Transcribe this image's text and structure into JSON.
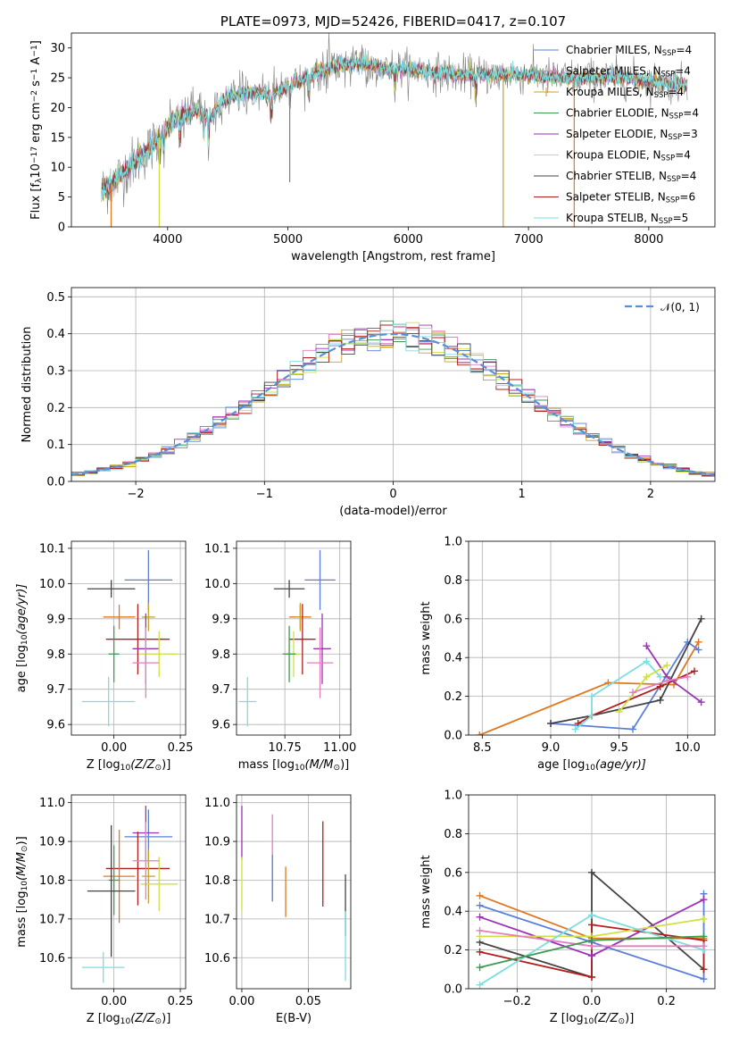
{
  "figure_title": "PLATE=0973, MJD=52426, FIBERID=0417, z=0.107",
  "colors": {
    "Chabrier MILES": "#5b7fd8",
    "Salpeter MILES": "#e47ebf",
    "Kroupa MILES": "#c9a227",
    "Chabrier ELODIE": "#3f9a52",
    "Salpeter ELODIE": "#9b32b5",
    "Kroupa ELODIE": "#cfe040",
    "Chabrier STELIB": "#444444",
    "Salpeter STELIB": "#b21e1e",
    "Kroupa STELIB": "#7ddde0",
    "orange": "#e07820",
    "spectrum_gray": "#7f7f7f",
    "gaussian": "#5b8ed8"
  },
  "chart_data": [
    {
      "id": "spectrum",
      "type": "line",
      "title": "PLATE=0973, MJD=52426, FIBERID=0417, z=0.107",
      "xlabel": "wavelength [Angstrom, rest frame]",
      "ylabel_parts": {
        "a": "Flux [f",
        "b": "λ",
        "c": "10",
        "d": "−17",
        "e": " erg cm",
        "f": "−2",
        "g": " s",
        "h": "−1",
        "i": " A",
        "j": "−1",
        "k": "]"
      },
      "xlim": [
        3200,
        8550
      ],
      "ylim": [
        0,
        32.5
      ],
      "xticks": [
        4000,
        5000,
        6000,
        7000,
        8000
      ],
      "yticks": [
        0,
        5,
        10,
        15,
        20,
        25,
        30
      ],
      "grid": false,
      "legend_position": "top-right",
      "legend": [
        {
          "pre": "Chabrier MILES, N",
          "sub": "SSP",
          "post": "=4",
          "color": "#5b7fd8",
          "marker": ""
        },
        {
          "pre": "Salpeter MILES, N",
          "sub": "SSP",
          "post": "=4",
          "color": "#e47ebf",
          "marker": ""
        },
        {
          "pre": "Kroupa MILES, N",
          "sub": "SSP",
          "post": "=4",
          "color": "#c9a227",
          "marker": "+"
        },
        {
          "pre": "Chabrier ELODIE, N",
          "sub": "SSP",
          "post": "=4",
          "color": "#3f9a52",
          "marker": ""
        },
        {
          "pre": "Salpeter ELODIE, N",
          "sub": "SSP",
          "post": "=3",
          "color": "#9b32b5",
          "marker": ""
        },
        {
          "pre": "Kroupa ELODIE, N",
          "sub": "SSP",
          "post": "=4",
          "color": "#cfe040",
          "marker": ""
        },
        {
          "pre": "Chabrier STELIB, N",
          "sub": "SSP",
          "post": "=4",
          "color": "#444444",
          "marker": ""
        },
        {
          "pre": "Salpeter STELIB, N",
          "sub": "SSP",
          "post": "=6",
          "color": "#b21e1e",
          "marker": ""
        },
        {
          "pre": "Kroupa STELIB, N",
          "sub": "SSP",
          "post": "=5",
          "color": "#7ddde0",
          "marker": ""
        }
      ],
      "continuum": {
        "x": [
          3450,
          3550,
          3650,
          3750,
          3850,
          3950,
          4050,
          4150,
          4250,
          4350,
          4450,
          4550,
          4650,
          4750,
          4850,
          4950,
          5050,
          5150,
          5250,
          5400,
          5600,
          5800,
          6000,
          6200,
          6400,
          6600,
          6800,
          7000,
          7200,
          7400,
          7600,
          7800,
          8000,
          8200,
          8320
        ],
        "y": [
          6,
          7.5,
          9.5,
          11.5,
          13,
          15.5,
          18,
          19,
          19.5,
          18,
          21,
          22,
          22.5,
          22.5,
          22,
          23,
          24,
          25,
          26,
          27,
          27.5,
          26.5,
          26.5,
          26,
          25.5,
          25.5,
          25.5,
          25.5,
          25,
          25,
          25,
          25,
          24.5,
          24,
          24
        ]
      },
      "dips": [
        {
          "x": 3530,
          "y": 0,
          "color": "#e07820"
        },
        {
          "x": 3930,
          "y": 0,
          "color": "#cfe040"
        },
        {
          "x": 6790,
          "y": 0,
          "color": "#c9a227"
        },
        {
          "x": 7380,
          "y": 0,
          "color": "#e07820"
        },
        {
          "x": 5015,
          "y": 7.5,
          "color": "#7f7f7f"
        }
      ]
    },
    {
      "id": "residuals",
      "type": "histogram",
      "xlabel": "(data-model)/error",
      "ylabel": "Normed distribution",
      "xlim": [
        -2.5,
        2.5
      ],
      "ylim": [
        0,
        0.525
      ],
      "xticks": [
        -2,
        -1,
        0,
        1,
        2
      ],
      "yticks": [
        0,
        0.1,
        0.2,
        0.3,
        0.4,
        0.5
      ],
      "ytick_labels": [
        "0.0",
        "0.1",
        "0.2",
        "0.3",
        "0.4",
        "0.5"
      ],
      "xtick_labels": [
        "−2",
        "−1",
        "0",
        "1",
        "2"
      ],
      "grid": true,
      "legend_position": "top-right",
      "legend_label": "𝒩(0, 1)",
      "bin_width": 0.1,
      "series_colors": [
        "#5b7fd8",
        "#e47ebf",
        "#c9a227",
        "#3f9a52",
        "#9b32b5",
        "#cfe040",
        "#444444",
        "#b21e1e",
        "#7ddde0"
      ]
    },
    {
      "id": "age_vs_Z",
      "type": "errorbar",
      "xlabel_pre": "Z [log",
      "xlabel_sub": "10",
      "xlabel_post": "(Z/Z",
      "xlabel_end": "⊙",
      "xlabel_close": ")]",
      "ylabel_pre": "age  [log",
      "ylabel_sub": "10",
      "ylabel_post": "(age/yr)]",
      "xlim": [
        -0.16,
        0.27
      ],
      "ylim": [
        9.57,
        10.12
      ],
      "xticks": [
        0.0,
        0.25
      ],
      "xtick_labels": [
        "0.00",
        "0.25"
      ],
      "yticks": [
        9.6,
        9.7,
        9.8,
        9.9,
        10.0,
        10.1
      ],
      "ytick_labels": [
        "9.6",
        "9.7",
        "9.8",
        "9.9",
        "10.0",
        "10.1"
      ],
      "points": [
        {
          "x": 0.13,
          "y": 10.01,
          "xerr": 0.09,
          "yerr": 0.085,
          "color": "#5b7fd8"
        },
        {
          "x": -0.01,
          "y": 9.985,
          "xerr": 0.09,
          "yerr": 0.025,
          "color": "#444444"
        },
        {
          "x": 0.02,
          "y": 9.905,
          "xerr": 0.06,
          "yerr": 0.035,
          "color": "#e07820"
        },
        {
          "x": 0.13,
          "y": 9.905,
          "xerr": 0.025,
          "yerr": 0.04,
          "color": "#c9a227"
        },
        {
          "x": 0.09,
          "y": 9.842,
          "xerr": 0.12,
          "yerr": 0.1,
          "color": "#b21e1e"
        },
        {
          "x": 0.12,
          "y": 9.815,
          "xerr": 0.05,
          "yerr": 0.1,
          "color": "#9b32b5"
        },
        {
          "x": 0.17,
          "y": 9.8,
          "xerr": 0.07,
          "yerr": 0.065,
          "color": "#cfe040"
        },
        {
          "x": 0.12,
          "y": 9.775,
          "xerr": 0.05,
          "yerr": 0.1,
          "color": "#e47ebf"
        },
        {
          "x": 0.0,
          "y": 9.8,
          "xerr": 0.02,
          "yerr": 0.08,
          "color": "#3f9a52"
        },
        {
          "x": -0.02,
          "y": 9.665,
          "xerr": 0.1,
          "yerr": 0.07,
          "color": "#7ddde0"
        }
      ]
    },
    {
      "id": "age_vs_mass",
      "type": "errorbar",
      "xlabel_pre": "mass [log",
      "xlabel_sub": "10",
      "xlabel_post": "(M/M",
      "xlabel_end": "⊙",
      "xlabel_close": ")]",
      "xlim": [
        10.53,
        11.05
      ],
      "ylim": [
        9.57,
        10.12
      ],
      "xticks": [
        10.75,
        11.0
      ],
      "xtick_labels": [
        "10.75",
        "11.00"
      ],
      "yticks": [
        9.6,
        9.7,
        9.8,
        9.9,
        10.0,
        10.1
      ],
      "ytick_labels": [
        "9.6",
        "9.7",
        "9.8",
        "9.9",
        "10.0",
        "10.1"
      ],
      "points": [
        {
          "x": 10.91,
          "y": 10.01,
          "xerr": 0.07,
          "yerr": 0.085,
          "color": "#5b7fd8"
        },
        {
          "x": 10.77,
          "y": 9.985,
          "xerr": 0.07,
          "yerr": 0.025,
          "color": "#444444"
        },
        {
          "x": 10.82,
          "y": 9.905,
          "xerr": 0.05,
          "yerr": 0.035,
          "color": "#e07820"
        },
        {
          "x": 10.82,
          "y": 9.905,
          "xerr": 0.02,
          "yerr": 0.04,
          "color": "#c9a227"
        },
        {
          "x": 10.83,
          "y": 9.842,
          "xerr": 0.06,
          "yerr": 0.1,
          "color": "#b21e1e"
        },
        {
          "x": 10.92,
          "y": 9.815,
          "xerr": 0.04,
          "yerr": 0.1,
          "color": "#9b32b5"
        },
        {
          "x": 10.79,
          "y": 9.8,
          "xerr": 0.03,
          "yerr": 0.065,
          "color": "#cfe040"
        },
        {
          "x": 10.91,
          "y": 9.775,
          "xerr": 0.06,
          "yerr": 0.1,
          "color": "#e47ebf"
        },
        {
          "x": 10.77,
          "y": 9.8,
          "xerr": 0.03,
          "yerr": 0.08,
          "color": "#3f9a52"
        },
        {
          "x": 10.58,
          "y": 9.665,
          "xerr": 0.04,
          "yerr": 0.07,
          "color": "#7ddde0"
        }
      ]
    },
    {
      "id": "weight_vs_age",
      "type": "line",
      "xlabel_pre": "age  [log",
      "xlabel_sub": "10",
      "xlabel_post": "(age/yr)]",
      "ylabel": "mass weight",
      "xlim": [
        8.4,
        10.2
      ],
      "ylim": [
        0,
        1.0
      ],
      "xticks": [
        8.5,
        9.0,
        9.5,
        10.0
      ],
      "xtick_labels": [
        "8.5",
        "9.0",
        "9.5",
        "10.0"
      ],
      "yticks": [
        0,
        0.2,
        0.4,
        0.6,
        0.8,
        1.0
      ],
      "ytick_labels": [
        "0.0",
        "0.2",
        "0.4",
        "0.6",
        "0.8",
        "1.0"
      ],
      "grid": true,
      "series": [
        {
          "color": "#e07820",
          "x": [
            8.48,
            9.42,
            9.9,
            10.08
          ],
          "y": [
            0.0,
            0.27,
            0.26,
            0.48
          ]
        },
        {
          "color": "#5b7fd8",
          "x": [
            9.0,
            9.6,
            10.0,
            10.08
          ],
          "y": [
            0.06,
            0.03,
            0.48,
            0.44
          ]
        },
        {
          "color": "#444444",
          "x": [
            9.0,
            9.3,
            9.8,
            10.1
          ],
          "y": [
            0.06,
            0.1,
            0.18,
            0.6
          ]
        },
        {
          "color": "#b21e1e",
          "x": [
            9.2,
            9.3,
            9.8,
            10.05
          ],
          "y": [
            0.06,
            0.1,
            0.25,
            0.33
          ]
        },
        {
          "color": "#7ddde0",
          "x": [
            9.18,
            9.3,
            9.3,
            9.7,
            9.8
          ],
          "y": [
            0.03,
            0.1,
            0.2,
            0.38,
            0.3
          ]
        },
        {
          "color": "#9b32b5",
          "x": [
            9.7,
            9.85,
            10.1
          ],
          "y": [
            0.46,
            0.3,
            0.17
          ]
        },
        {
          "color": "#cfe040",
          "x": [
            9.5,
            9.7,
            9.85
          ],
          "y": [
            0.12,
            0.3,
            0.36
          ]
        },
        {
          "color": "#e47ebf",
          "x": [
            9.6,
            9.85,
            10.0
          ],
          "y": [
            0.22,
            0.28,
            0.3
          ]
        }
      ]
    },
    {
      "id": "mass_vs_Z",
      "type": "errorbar",
      "xlabel_pre": "Z [log",
      "xlabel_sub": "10",
      "xlabel_post": "(Z/Z",
      "xlabel_end": "⊙",
      "xlabel_close": ")]",
      "ylabel_pre": "mass [log",
      "ylabel_sub": "10",
      "ylabel_post": "(M/M",
      "ylabel_end": "⊙",
      "ylabel_close": ")]",
      "xlim": [
        -0.16,
        0.27
      ],
      "ylim": [
        10.52,
        11.02
      ],
      "xticks": [
        0.0,
        0.25
      ],
      "xtick_labels": [
        "0.00",
        "0.25"
      ],
      "yticks": [
        10.6,
        10.7,
        10.8,
        10.9,
        11.0
      ],
      "ytick_labels": [
        "10.6",
        "10.7",
        "10.8",
        "10.9",
        "11.0"
      ],
      "points": [
        {
          "x": 0.13,
          "y": 10.912,
          "xerr": 0.09,
          "yerr": 0.07,
          "color": "#5b7fd8"
        },
        {
          "x": 0.12,
          "y": 10.922,
          "xerr": 0.05,
          "yerr": 0.07,
          "color": "#9b32b5"
        },
        {
          "x": 0.09,
          "y": 10.83,
          "xerr": 0.12,
          "yerr": 0.095,
          "color": "#b21e1e"
        },
        {
          "x": 0.02,
          "y": 10.81,
          "xerr": 0.06,
          "yerr": 0.12,
          "color": "#e07820"
        },
        {
          "x": 0.13,
          "y": 10.81,
          "xerr": 0.025,
          "yerr": 0.07,
          "color": "#c9a227"
        },
        {
          "x": 0.17,
          "y": 10.79,
          "xerr": 0.07,
          "yerr": 0.07,
          "color": "#cfe040"
        },
        {
          "x": 0.12,
          "y": 10.85,
          "xerr": 0.05,
          "yerr": 0.1,
          "color": "#e47ebf"
        },
        {
          "x": 0.0,
          "y": 10.8,
          "xerr": 0.02,
          "yerr": 0.09,
          "color": "#3f9a52"
        },
        {
          "x": -0.01,
          "y": 10.772,
          "xerr": 0.09,
          "yerr": 0.17,
          "color": "#444444"
        },
        {
          "x": -0.04,
          "y": 10.575,
          "xerr": 0.08,
          "yerr": 0.04,
          "color": "#7ddde0"
        }
      ]
    },
    {
      "id": "mass_vs_EBV",
      "type": "errorbar",
      "xlabel": "E(B-V)",
      "xlim": [
        -0.004,
        0.082
      ],
      "ylim": [
        10.52,
        11.02
      ],
      "xticks": [
        0.0,
        0.05
      ],
      "xtick_labels": [
        "0.00",
        "0.05"
      ],
      "yticks": [
        10.6,
        10.7,
        10.8,
        10.9,
        11.0
      ],
      "ytick_labels": [
        "10.6",
        "10.7",
        "10.8",
        "10.9",
        "11.0"
      ],
      "points": [
        {
          "x": 0.0,
          "y": 10.922,
          "xerr": 0,
          "yerr": 0.07,
          "color": "#9b32b5"
        },
        {
          "x": 0.0,
          "y": 10.79,
          "xerr": 0,
          "yerr": 0.07,
          "color": "#cfe040"
        },
        {
          "x": 0.023,
          "y": 10.86,
          "xerr": 0,
          "yerr": 0.11,
          "color": "#e47ebf"
        },
        {
          "x": 0.023,
          "y": 10.805,
          "xerr": 0,
          "yerr": 0.06,
          "color": "#5b7fd8"
        },
        {
          "x": 0.033,
          "y": 10.77,
          "xerr": 0,
          "yerr": 0.065,
          "color": "#e07820"
        },
        {
          "x": 0.061,
          "y": 10.842,
          "xerr": 0,
          "yerr": 0.11,
          "color": "#b21e1e"
        },
        {
          "x": 0.078,
          "y": 10.735,
          "xerr": 0,
          "yerr": 0.08,
          "color": "#444444"
        },
        {
          "x": 0.078,
          "y": 10.63,
          "xerr": 0,
          "yerr": 0.09,
          "color": "#7ddde0"
        }
      ]
    },
    {
      "id": "weight_vs_Z",
      "type": "line",
      "xlabel_pre": "Z [log",
      "xlabel_sub": "10",
      "xlabel_post": "(Z/Z",
      "xlabel_end": "⊙",
      "xlabel_close": ")]",
      "ylabel": "mass weight",
      "xlim": [
        -0.33,
        0.33
      ],
      "ylim": [
        0,
        1.0
      ],
      "xticks": [
        -0.2,
        0.0,
        0.2
      ],
      "xtick_labels": [
        "−0.2",
        "0.0",
        "0.2"
      ],
      "yticks": [
        0,
        0.2,
        0.4,
        0.6,
        0.8,
        1.0
      ],
      "ytick_labels": [
        "0.0",
        "0.2",
        "0.4",
        "0.6",
        "0.8",
        "1.0"
      ],
      "grid": true,
      "series": [
        {
          "color": "#e07820",
          "x": [
            -0.3,
            0.0,
            0.3
          ],
          "y": [
            0.48,
            0.26,
            0.26
          ]
        },
        {
          "color": "#5b7fd8",
          "x": [
            -0.3,
            0.0,
            0.3,
            0.3
          ],
          "y": [
            0.43,
            0.24,
            0.05,
            0.49
          ]
        },
        {
          "color": "#444444",
          "x": [
            -0.3,
            0.0,
            0.0,
            0.3
          ],
          "y": [
            0.24,
            0.06,
            0.6,
            0.1
          ]
        },
        {
          "color": "#b21e1e",
          "x": [
            -0.3,
            0.0,
            0.0,
            0.3,
            0.3
          ],
          "y": [
            0.19,
            0.06,
            0.33,
            0.25,
            0.1
          ]
        },
        {
          "color": "#9b32b5",
          "x": [
            -0.3,
            0.0,
            0.3
          ],
          "y": [
            0.37,
            0.17,
            0.46
          ]
        },
        {
          "color": "#cfe040",
          "x": [
            -0.3,
            0.0,
            0.3
          ],
          "y": [
            0.27,
            0.27,
            0.36
          ]
        },
        {
          "color": "#7ddde0",
          "x": [
            -0.3,
            0.0,
            0.3
          ],
          "y": [
            0.02,
            0.38,
            0.2
          ]
        },
        {
          "color": "#e47ebf",
          "x": [
            -0.3,
            0.0,
            0.3
          ],
          "y": [
            0.3,
            0.22,
            0.22
          ]
        },
        {
          "color": "#3f9a52",
          "x": [
            -0.3,
            0.0,
            0.3
          ],
          "y": [
            0.11,
            0.25,
            0.27
          ]
        }
      ]
    }
  ]
}
